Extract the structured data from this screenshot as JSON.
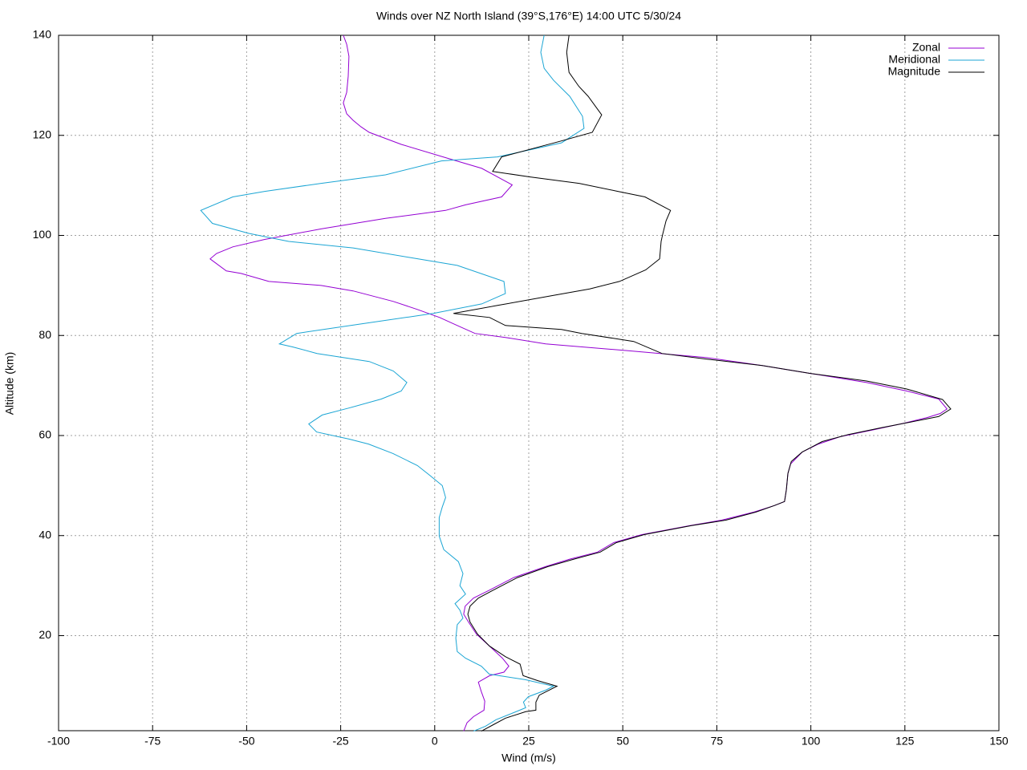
{
  "chart_data": {
    "type": "line",
    "title": "Winds over NZ North Island (39°S,176°E) 14:00 UTC 5/30/24",
    "xlabel": "Wind (m/s)",
    "ylabel": "Altitude (km)",
    "xlim": [
      -100,
      150
    ],
    "ylim": [
      1,
      140
    ],
    "xticks": [
      -100,
      -75,
      -50,
      -25,
      0,
      25,
      50,
      75,
      100,
      125,
      150
    ],
    "yticks": [
      20,
      40,
      60,
      80,
      100,
      120,
      140
    ],
    "grid": true,
    "legend": "top-right",
    "series": [
      {
        "name": "Zonal",
        "color": "#9400d3",
        "x": [
          7.7,
          8.6,
          10.3,
          13.1,
          13.3,
          12.4,
          11.6,
          14.6,
          18.4,
          19.7,
          18,
          14.6,
          11.1,
          9,
          7.7,
          8.1,
          10.3,
          14.6,
          21,
          29.5,
          35.9,
          43.3,
          47.6,
          55.1,
          67.9,
          76.4,
          84.9,
          90.3,
          93,
          93.5,
          93.9,
          94.6,
          97.7,
          102,
          108,
          117,
          125,
          131,
          134.4,
          136.2,
          134,
          125.5,
          114.8,
          99.9,
          87.1,
          72.1,
          50.8,
          29.5,
          18.8,
          10.7,
          6,
          1.3,
          -4.6,
          -11,
          -21.7,
          -30.2,
          -44.1,
          -51.5,
          -55.4,
          -59.7,
          -58,
          -53.7,
          -45.2,
          -30.2,
          -13.1,
          2.9,
          8.2,
          17.8,
          20.6,
          12.5,
          4,
          -8.9,
          -17.4,
          -19.6,
          -21.7,
          -23.4,
          -24.3,
          -23.4,
          -23,
          -22.8,
          -23.4,
          -24.3
        ],
        "y": [
          0.9,
          2.6,
          3.8,
          5.1,
          6.9,
          8.8,
          10.7,
          12,
          12.7,
          13.9,
          15.5,
          17.9,
          20.3,
          22.7,
          24.3,
          25.9,
          27.5,
          29.1,
          31.6,
          33.8,
          35.3,
          36.7,
          38.6,
          40.2,
          42,
          43.1,
          44.7,
          46,
          46.8,
          49.2,
          52.4,
          54.3,
          56.7,
          58.3,
          59.8,
          61.2,
          62.5,
          63.6,
          64.4,
          65.3,
          67.3,
          68.9,
          70.6,
          72.4,
          74,
          75.6,
          77,
          78.3,
          79.6,
          80.4,
          82,
          83.6,
          85.2,
          86.8,
          88.9,
          90,
          90.8,
          92.4,
          92.9,
          95.3,
          96.4,
          97.7,
          99.2,
          101.3,
          103.4,
          105,
          106.1,
          107.7,
          110.1,
          113.4,
          115.3,
          118.2,
          120.6,
          121.7,
          123,
          124.3,
          126.5,
          128.6,
          131.8,
          135.8,
          138.2,
          140
        ]
      },
      {
        "name": "Meridional",
        "color": "#1ba5d4",
        "x": [
          10.3,
          13.5,
          16.3,
          21,
          24.2,
          23.6,
          24.9,
          29.5,
          31.6,
          24.1,
          14.5,
          12.4,
          8.2,
          6,
          5.6,
          6,
          7.5,
          6.7,
          5.4,
          8.2,
          6.7,
          7.5,
          6.3,
          2.4,
          1.2,
          1.2,
          2,
          2.9,
          2,
          -1.4,
          -4.6,
          -11.1,
          -17.6,
          -22.8,
          -31.4,
          -33.5,
          -29.9,
          -22.8,
          -14.2,
          -8.9,
          -7.4,
          -11,
          -17.4,
          -31.3,
          -37.7,
          -41.3,
          -36.7,
          -19.6,
          -0.4,
          12.5,
          18.8,
          18.4,
          6,
          -6.8,
          -21.7,
          -38.8,
          -49.4,
          -59.1,
          -62.2,
          -53.7,
          -45.2,
          -30.2,
          -13.1,
          1.8,
          16.7,
          33.7,
          39.7,
          39.3,
          35.9,
          31.6,
          29.1,
          28.2,
          29.1
        ],
        "y": [
          0.9,
          1.9,
          3.2,
          4.6,
          5.6,
          6.7,
          7.8,
          9.1,
          9.9,
          11.2,
          12.3,
          13.9,
          15.5,
          16.8,
          19.5,
          22.2,
          23.5,
          25.1,
          26.4,
          28.3,
          30,
          32.4,
          34.8,
          37.2,
          39.9,
          43.6,
          45.7,
          47.6,
          50,
          52.1,
          54,
          56.4,
          58.3,
          59.3,
          60.7,
          62.3,
          64.1,
          65.5,
          67.3,
          68.9,
          70.6,
          72.9,
          74.8,
          76.4,
          77.7,
          78.3,
          80.4,
          82.3,
          84.4,
          86.3,
          88.4,
          90.8,
          94,
          95.6,
          97.5,
          98.8,
          100.4,
          102.4,
          105,
          107.7,
          108.8,
          110.4,
          112.1,
          114.9,
          115.7,
          118.5,
          121.4,
          123.8,
          127.8,
          131,
          133.4,
          136.6,
          140
        ]
      },
      {
        "name": "Magnitude",
        "color": "#000000",
        "x": [
          12.4,
          15.6,
          18.8,
          24.2,
          26.9,
          26.9,
          27.8,
          32.5,
          27.4,
          23.5,
          22.7,
          18.8,
          14.6,
          11.4,
          9.4,
          8.8,
          9.4,
          11.6,
          15.6,
          22,
          30.1,
          37,
          44,
          48.3,
          55.7,
          68.3,
          77.5,
          85.4,
          90.3,
          93,
          93.5,
          93.9,
          94.8,
          97.7,
          103,
          110,
          119,
          126.5,
          134,
          137.2,
          135,
          125.5,
          114.8,
          99.9,
          87.1,
          72.1,
          60.4,
          52.9,
          39.1,
          33.7,
          18.8,
          14.6,
          5,
          16.7,
          31.6,
          41.2,
          49.1,
          56.1,
          59.8,
          60.2,
          60.6,
          61.5,
          62.7,
          55.9,
          48.7,
          38.4,
          25.2,
          15.4,
          17.8,
          33.3,
          41.9,
          44.4,
          40.8,
          38.3,
          35.7,
          35.1,
          35.7
        ],
        "y": [
          0.9,
          2.2,
          3.5,
          4.8,
          5.1,
          6.7,
          8.1,
          9.9,
          11,
          12,
          14.3,
          15.8,
          17.9,
          20.3,
          22.7,
          24.3,
          25.9,
          27.5,
          29.1,
          31.6,
          33.8,
          35.3,
          36.7,
          38.6,
          40.2,
          42,
          43.1,
          44.7,
          46,
          46.8,
          49.2,
          52.4,
          54.8,
          56.7,
          58.8,
          60.2,
          61.6,
          62.7,
          63.8,
          65.3,
          67.2,
          69.3,
          70.9,
          72.4,
          74,
          75.3,
          76.4,
          78.8,
          80.4,
          81.2,
          82,
          83.6,
          84.4,
          86,
          88,
          89.3,
          90.8,
          93.1,
          95.3,
          98.8,
          100.2,
          102.9,
          105,
          107.7,
          108.8,
          110.4,
          111.7,
          112.8,
          115.7,
          118.8,
          120.6,
          124.1,
          127.8,
          129.8,
          132.6,
          136.6,
          140
        ]
      }
    ]
  }
}
